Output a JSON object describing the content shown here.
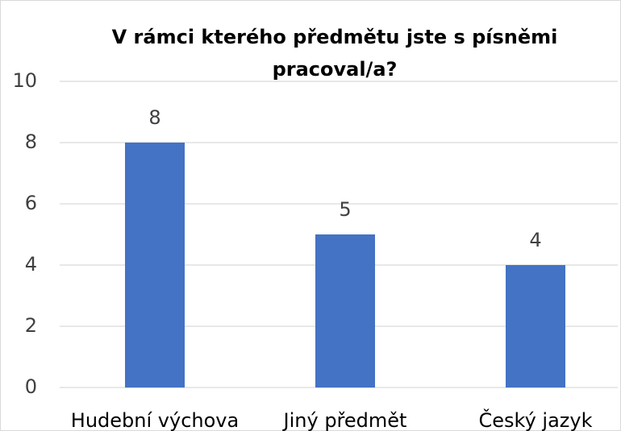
{
  "chart_data": {
    "type": "bar",
    "title": "V rámci kterého předmětu jste s písněmi pracoval/a?",
    "categories": [
      "Hudební výchova",
      "Jiný předmět",
      "Český jazyk"
    ],
    "values": [
      8,
      5,
      4
    ],
    "color": "#4472c4",
    "ylim": [
      0,
      10
    ],
    "yticks": [
      0,
      2,
      4,
      6,
      8,
      10
    ],
    "grid": true
  }
}
